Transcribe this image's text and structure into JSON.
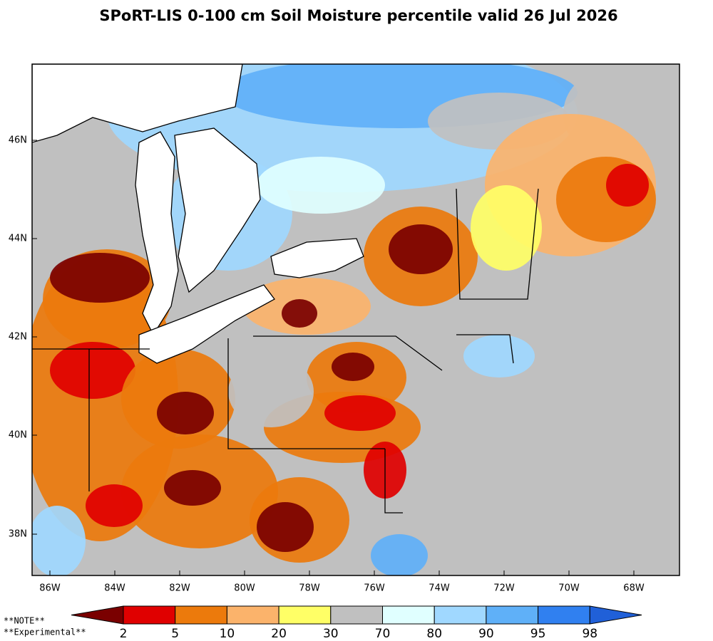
{
  "title": "SPoRT-LIS 0-100 cm Soil Moisture percentile valid 26 Jul 2026",
  "map": {
    "lat_labels": [
      "46N",
      "44N",
      "42N",
      "40N",
      "38N"
    ],
    "lon_labels": [
      "86W",
      "84W",
      "82W",
      "80W",
      "78W",
      "76W",
      "74W",
      "72W",
      "70W",
      "68W"
    ]
  },
  "colorbar": {
    "labels": [
      "2",
      "5",
      "10",
      "20",
      "30",
      "70",
      "80",
      "90",
      "95",
      "98"
    ],
    "colors": [
      "#7a0000",
      "#e00000",
      "#ec7a0c",
      "#fbb36b",
      "#ffff66",
      "#c0c0c0",
      "#e0ffff",
      "#a0d8ff",
      "#5fb0f8",
      "#3080f0",
      "#2060d8"
    ]
  },
  "notes": [
    "**NOTE**",
    "**Experimental**"
  ]
}
